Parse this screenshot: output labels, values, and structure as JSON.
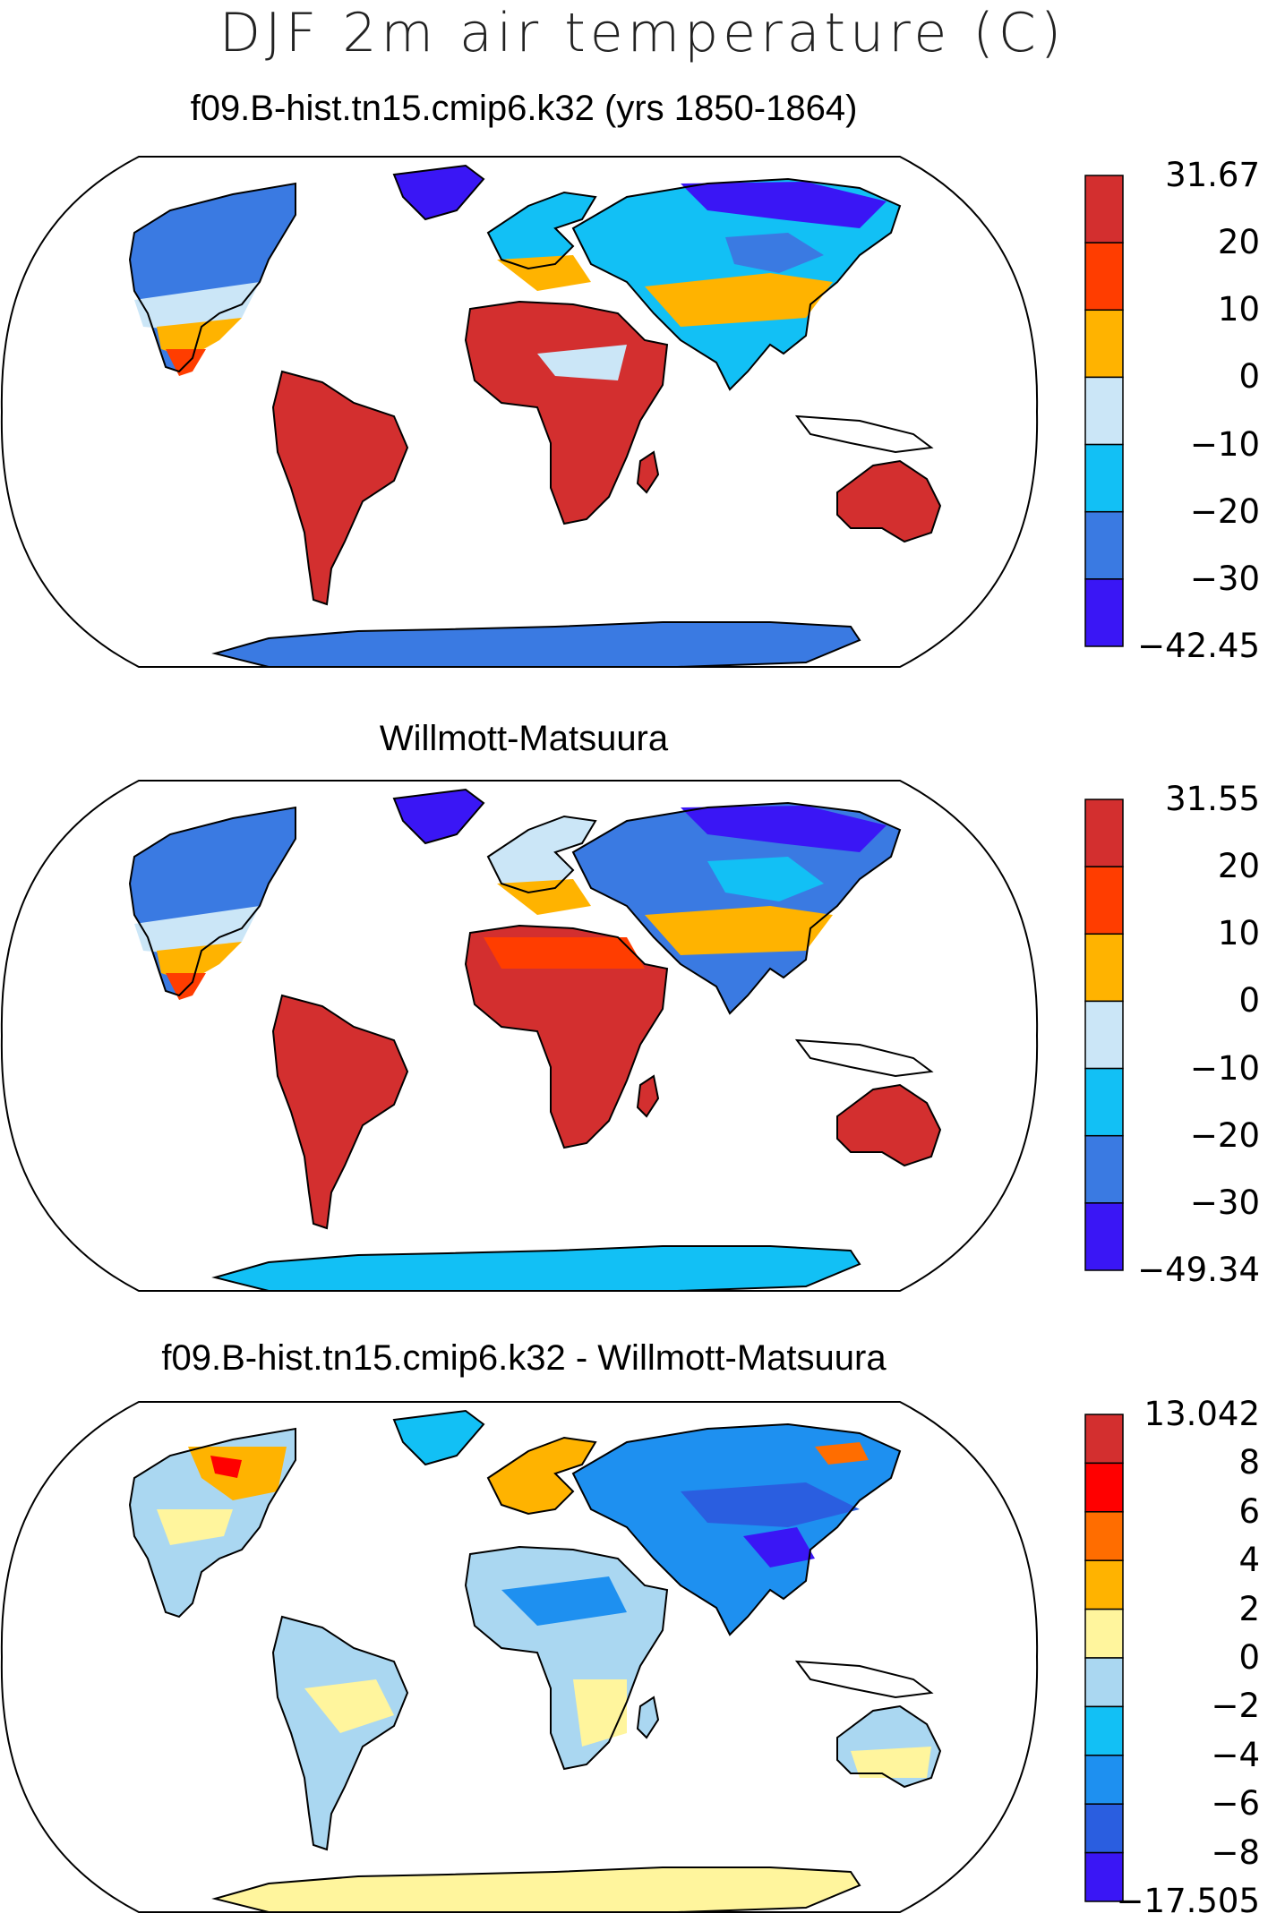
{
  "figure": {
    "title": "DJF 2m air temperature (C)"
  },
  "panels": [
    {
      "title": "f09.B-hist.tn15.cmip6.k32 (yrs 1850-1864)",
      "colorbar": {
        "labels": [
          "31.67",
          "20",
          "10",
          "0",
          "−10",
          "−20",
          "−30",
          "−42.45"
        ],
        "colors": [
          "#d32f2f",
          "#ff3d00",
          "#ffb300",
          "#cbe6f7",
          "#12c0f5",
          "#3a7ae2",
          "#3a16f5"
        ]
      }
    },
    {
      "title": "Willmott-Matsuura",
      "colorbar": {
        "labels": [
          "31.55",
          "20",
          "10",
          "0",
          "−10",
          "−20",
          "−30",
          "−49.34"
        ],
        "colors": [
          "#d32f2f",
          "#ff3d00",
          "#ffb300",
          "#cbe6f7",
          "#12c0f5",
          "#3a7ae2",
          "#3a16f5"
        ]
      }
    },
    {
      "title": "f09.B-hist.tn15.cmip6.k32 - Willmott-Matsuura",
      "colorbar": {
        "labels": [
          "13.042",
          "8",
          "6",
          "4",
          "2",
          "0",
          "−2",
          "−4",
          "−6",
          "−8",
          "−17.505"
        ],
        "colors": [
          "#d32f2f",
          "#ff0000",
          "#ff6d00",
          "#ffb300",
          "#fff59d",
          "#aad7f1",
          "#12c0f5",
          "#1e90f0",
          "#2a5ee0",
          "#3a16f5"
        ]
      }
    }
  ]
}
